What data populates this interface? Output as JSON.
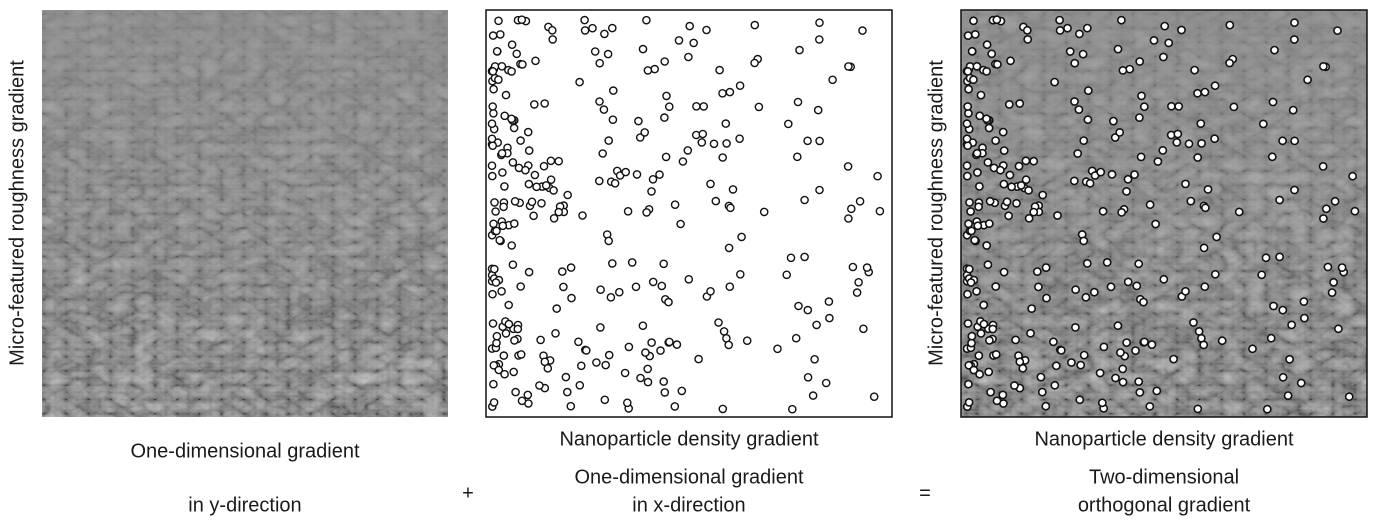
{
  "panels": [
    {
      "y_axis_label": "Micro-featured roughness gradient",
      "caption": [
        "One-dimensional gradient",
        "in y-direction"
      ]
    },
    {
      "x_axis_label": "Nanoparticle density gradient",
      "caption": [
        "One-dimensional gradient",
        "in x-direction"
      ]
    },
    {
      "y_axis_label": "Micro-featured roughness gradient",
      "x_axis_label": "Nanoparticle density gradient",
      "caption": [
        "Two-dimensional",
        "orthogonal gradient"
      ]
    }
  ],
  "operators": [
    "+",
    "="
  ]
}
